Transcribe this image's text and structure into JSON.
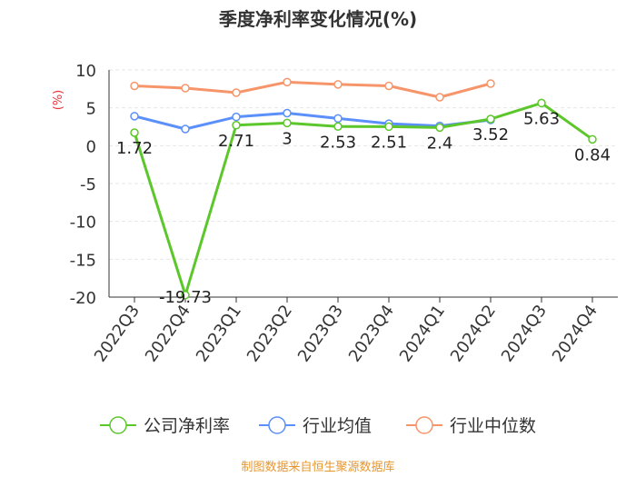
{
  "chart_data": {
    "type": "line",
    "title": "季度净利率变化情况(%)",
    "ylabel": "(%)",
    "xlabel": "",
    "categories": [
      "2022Q3",
      "2022Q4",
      "2023Q1",
      "2023Q2",
      "2023Q3",
      "2023Q4",
      "2024Q1",
      "2024Q2",
      "2024Q3",
      "2024Q4"
    ],
    "ylim": [
      -20,
      10
    ],
    "yticks": [
      10,
      5,
      0,
      -5,
      -10,
      -15,
      -20
    ],
    "grid": true,
    "legend_position": "bottom",
    "series": [
      {
        "name": "公司净利率",
        "color": "#5cc72a",
        "values": [
          1.72,
          -19.73,
          2.71,
          3,
          2.53,
          2.51,
          2.4,
          3.52,
          5.63,
          0.84
        ],
        "labels": [
          "1.72",
          "-19.73",
          "2.71",
          "3",
          "2.53",
          "2.51",
          "2.4",
          "3.52",
          "5.63",
          "0.84"
        ],
        "show_labels": true
      },
      {
        "name": "行业均值",
        "color": "#5b8ff9",
        "values": [
          3.9,
          2.2,
          3.8,
          4.3,
          3.6,
          2.9,
          2.6,
          3.4,
          null,
          null
        ],
        "show_labels": false
      },
      {
        "name": "行业中位数",
        "color": "#f7956a",
        "values": [
          7.9,
          7.6,
          7.0,
          8.4,
          8.1,
          7.9,
          6.4,
          8.2,
          null,
          null
        ],
        "show_labels": false
      }
    ],
    "source": "制图数据来自恒生聚源数据库",
    "source_color": "#e8962b"
  }
}
